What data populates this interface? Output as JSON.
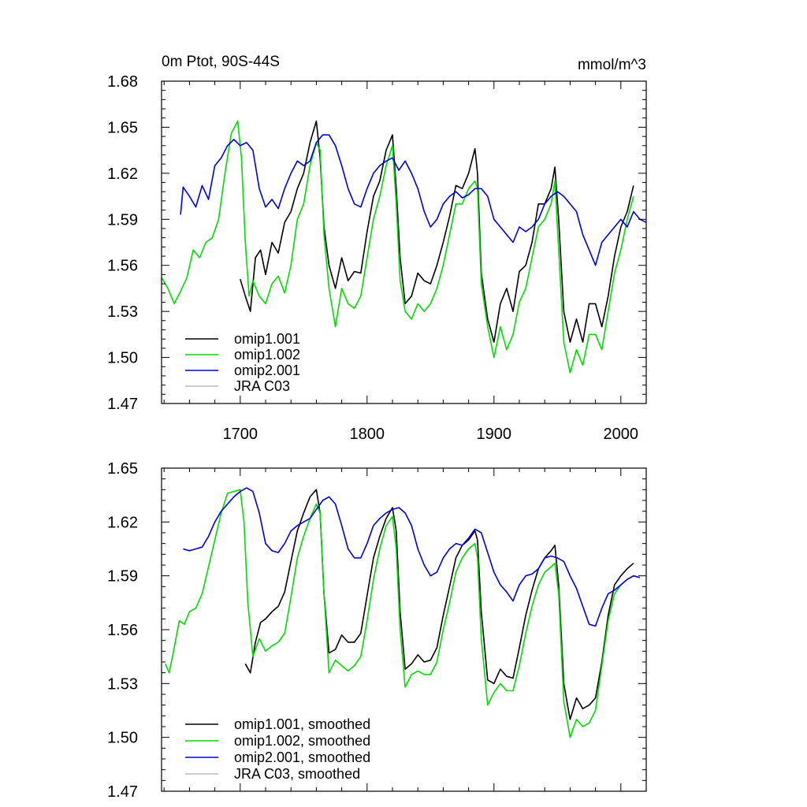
{
  "chart_data": [
    {
      "type": "line",
      "title": "0m Ptot, 90S-44S",
      "units": "mmol/m^3",
      "xlim": [
        1638,
        2020
      ],
      "ylim": [
        1.47,
        1.68
      ],
      "xticks": [
        1700,
        1800,
        1900,
        2000
      ],
      "xtick_labels": [
        "1700",
        "1800",
        "1900",
        "2000"
      ],
      "yticks": [
        1.47,
        1.5,
        1.53,
        1.56,
        1.59,
        1.62,
        1.65,
        1.68
      ],
      "ytick_labels": [
        "1.47",
        "1.50",
        "1.53",
        "1.56",
        "1.59",
        "1.62",
        "1.65",
        "1.68"
      ],
      "grid": false,
      "legend_position": "bottom-left",
      "series": [
        {
          "name": "omip1.001",
          "color": "#000000",
          "x": [
            1700,
            1704,
            1708,
            1712,
            1716,
            1720,
            1725,
            1730,
            1735,
            1740,
            1745,
            1750,
            1755,
            1760,
            1763,
            1766,
            1770,
            1775,
            1780,
            1785,
            1790,
            1795,
            1800,
            1805,
            1810,
            1815,
            1820,
            1823,
            1826,
            1830,
            1835,
            1840,
            1845,
            1850,
            1855,
            1860,
            1865,
            1870,
            1875,
            1880,
            1885,
            1887,
            1890,
            1895,
            1900,
            1905,
            1910,
            1915,
            1920,
            1925,
            1930,
            1935,
            1940,
            1945,
            1948,
            1951,
            1955,
            1960,
            1965,
            1970,
            1975,
            1980,
            1985,
            1990,
            1995,
            2000,
            2005,
            2010
          ],
          "y": [
            1.551,
            1.54,
            1.53,
            1.565,
            1.57,
            1.554,
            1.575,
            1.568,
            1.588,
            1.595,
            1.61,
            1.62,
            1.64,
            1.654,
            1.63,
            1.585,
            1.56,
            1.545,
            1.565,
            1.55,
            1.556,
            1.555,
            1.582,
            1.605,
            1.615,
            1.635,
            1.645,
            1.61,
            1.565,
            1.535,
            1.54,
            1.555,
            1.55,
            1.548,
            1.56,
            1.575,
            1.592,
            1.612,
            1.61,
            1.62,
            1.636,
            1.62,
            1.555,
            1.525,
            1.51,
            1.535,
            1.545,
            1.53,
            1.556,
            1.56,
            1.575,
            1.6,
            1.6,
            1.61,
            1.624,
            1.59,
            1.53,
            1.51,
            1.525,
            1.51,
            1.535,
            1.535,
            1.52,
            1.54,
            1.566,
            1.585,
            1.595,
            1.612
          ]
        },
        {
          "name": "omip1.002",
          "color": "#00dd00",
          "x": [
            1638,
            1643,
            1648,
            1653,
            1658,
            1663,
            1668,
            1673,
            1678,
            1683,
            1688,
            1693,
            1698,
            1701,
            1704,
            1707,
            1710,
            1715,
            1720,
            1725,
            1730,
            1735,
            1740,
            1745,
            1750,
            1755,
            1760,
            1763,
            1766,
            1770,
            1775,
            1780,
            1785,
            1790,
            1795,
            1800,
            1805,
            1810,
            1815,
            1820,
            1823,
            1826,
            1830,
            1835,
            1840,
            1845,
            1850,
            1855,
            1860,
            1865,
            1870,
            1875,
            1880,
            1885,
            1887,
            1890,
            1895,
            1900,
            1905,
            1910,
            1915,
            1920,
            1925,
            1930,
            1935,
            1940,
            1945,
            1948,
            1951,
            1955,
            1960,
            1965,
            1970,
            1975,
            1980,
            1985,
            1990,
            1995,
            2000,
            2005,
            2010
          ],
          "y": [
            1.552,
            1.545,
            1.535,
            1.543,
            1.552,
            1.57,
            1.565,
            1.575,
            1.578,
            1.59,
            1.62,
            1.646,
            1.654,
            1.63,
            1.575,
            1.54,
            1.55,
            1.54,
            1.535,
            1.548,
            1.553,
            1.542,
            1.56,
            1.59,
            1.6,
            1.625,
            1.64,
            1.635,
            1.58,
            1.545,
            1.52,
            1.545,
            1.535,
            1.532,
            1.54,
            1.565,
            1.59,
            1.605,
            1.625,
            1.638,
            1.6,
            1.55,
            1.53,
            1.525,
            1.535,
            1.53,
            1.535,
            1.545,
            1.56,
            1.58,
            1.6,
            1.6,
            1.61,
            1.615,
            1.61,
            1.548,
            1.52,
            1.5,
            1.52,
            1.505,
            1.515,
            1.536,
            1.545,
            1.565,
            1.585,
            1.59,
            1.6,
            1.615,
            1.57,
            1.51,
            1.49,
            1.505,
            1.495,
            1.515,
            1.515,
            1.505,
            1.53,
            1.555,
            1.57,
            1.59,
            1.605
          ]
        },
        {
          "name": "omip2.001",
          "color": "#0000dd",
          "x": [
            1653,
            1655,
            1660,
            1665,
            1670,
            1675,
            1680,
            1685,
            1690,
            1695,
            1700,
            1705,
            1710,
            1715,
            1720,
            1725,
            1730,
            1735,
            1740,
            1745,
            1750,
            1755,
            1760,
            1765,
            1770,
            1775,
            1780,
            1785,
            1790,
            1795,
            1800,
            1805,
            1810,
            1815,
            1820,
            1825,
            1830,
            1835,
            1840,
            1845,
            1850,
            1855,
            1860,
            1865,
            1870,
            1875,
            1880,
            1885,
            1890,
            1895,
            1900,
            1905,
            1910,
            1915,
            1920,
            1925,
            1930,
            1935,
            1940,
            1945,
            1950,
            1955,
            1960,
            1965,
            1970,
            1975,
            1980,
            1985,
            1990,
            1995,
            2000,
            2005,
            2010,
            2015,
            2020
          ],
          "y": [
            1.593,
            1.611,
            1.605,
            1.598,
            1.612,
            1.603,
            1.625,
            1.63,
            1.638,
            1.642,
            1.638,
            1.64,
            1.635,
            1.61,
            1.598,
            1.603,
            1.597,
            1.61,
            1.62,
            1.628,
            1.625,
            1.628,
            1.64,
            1.645,
            1.645,
            1.638,
            1.625,
            1.61,
            1.6,
            1.598,
            1.61,
            1.62,
            1.625,
            1.628,
            1.63,
            1.622,
            1.628,
            1.62,
            1.61,
            1.595,
            1.585,
            1.59,
            1.6,
            1.605,
            1.608,
            1.604,
            1.606,
            1.61,
            1.61,
            1.605,
            1.59,
            1.585,
            1.58,
            1.575,
            1.585,
            1.582,
            1.585,
            1.59,
            1.6,
            1.605,
            1.608,
            1.605,
            1.6,
            1.595,
            1.58,
            1.57,
            1.56,
            1.575,
            1.58,
            1.585,
            1.59,
            1.585,
            1.595,
            1.59,
            1.588
          ]
        },
        {
          "name": "JRA C03",
          "color": "#bbbbbb",
          "x": [],
          "y": []
        }
      ]
    },
    {
      "type": "line",
      "title": "",
      "xlim": [
        1638,
        2020
      ],
      "ylim": [
        1.47,
        1.65
      ],
      "xticks": [
        1700,
        1800,
        1900,
        2000
      ],
      "yticks": [
        1.47,
        1.5,
        1.53,
        1.56,
        1.59,
        1.62,
        1.65
      ],
      "ytick_labels": [
        "1.47",
        "1.50",
        "1.53",
        "1.56",
        "1.59",
        "1.62",
        "1.65"
      ],
      "grid": false,
      "legend_position": "bottom-left",
      "series": [
        {
          "name": "omip1.001, smoothed",
          "color": "#000000",
          "x": [
            1704,
            1708,
            1712,
            1716,
            1720,
            1725,
            1730,
            1735,
            1740,
            1745,
            1750,
            1755,
            1760,
            1763,
            1766,
            1770,
            1775,
            1780,
            1785,
            1790,
            1795,
            1800,
            1805,
            1810,
            1815,
            1820,
            1823,
            1826,
            1830,
            1835,
            1840,
            1845,
            1850,
            1855,
            1860,
            1865,
            1870,
            1875,
            1880,
            1885,
            1887,
            1890,
            1895,
            1900,
            1905,
            1910,
            1915,
            1920,
            1925,
            1930,
            1935,
            1940,
            1945,
            1948,
            1951,
            1955,
            1960,
            1965,
            1970,
            1975,
            1980,
            1985,
            1990,
            1995,
            2000,
            2005,
            2010
          ],
          "y": [
            1.541,
            1.536,
            1.553,
            1.564,
            1.566,
            1.57,
            1.573,
            1.581,
            1.598,
            1.615,
            1.625,
            1.634,
            1.638,
            1.625,
            1.58,
            1.547,
            1.549,
            1.557,
            1.553,
            1.553,
            1.558,
            1.579,
            1.6,
            1.612,
            1.622,
            1.628,
            1.615,
            1.57,
            1.538,
            1.541,
            1.546,
            1.542,
            1.543,
            1.55,
            1.568,
            1.584,
            1.6,
            1.607,
            1.61,
            1.615,
            1.61,
            1.57,
            1.532,
            1.53,
            1.538,
            1.534,
            1.533,
            1.55,
            1.568,
            1.582,
            1.594,
            1.6,
            1.604,
            1.607,
            1.585,
            1.53,
            1.51,
            1.522,
            1.516,
            1.518,
            1.522,
            1.542,
            1.568,
            1.585,
            1.59,
            1.594,
            1.597
          ]
        },
        {
          "name": "omip1.002, smoothed",
          "color": "#00dd00",
          "x": [
            1641,
            1644,
            1648,
            1652,
            1656,
            1660,
            1665,
            1670,
            1675,
            1680,
            1685,
            1690,
            1695,
            1700,
            1703,
            1706,
            1710,
            1715,
            1720,
            1725,
            1730,
            1735,
            1740,
            1745,
            1750,
            1755,
            1760,
            1763,
            1766,
            1770,
            1775,
            1780,
            1785,
            1790,
            1795,
            1800,
            1805,
            1810,
            1815,
            1820,
            1823,
            1826,
            1830,
            1835,
            1840,
            1845,
            1850,
            1855,
            1860,
            1865,
            1870,
            1875,
            1880,
            1885,
            1887,
            1890,
            1895,
            1900,
            1905,
            1910,
            1915,
            1920,
            1925,
            1930,
            1935,
            1940,
            1945,
            1948,
            1951,
            1955,
            1960,
            1965,
            1970,
            1975,
            1980,
            1985,
            1990,
            1995,
            2000,
            2005,
            2010
          ],
          "y": [
            1.541,
            1.536,
            1.55,
            1.565,
            1.563,
            1.57,
            1.572,
            1.58,
            1.595,
            1.61,
            1.625,
            1.636,
            1.637,
            1.638,
            1.62,
            1.575,
            1.545,
            1.555,
            1.548,
            1.551,
            1.553,
            1.558,
            1.578,
            1.6,
            1.612,
            1.622,
            1.63,
            1.625,
            1.58,
            1.536,
            1.543,
            1.54,
            1.537,
            1.54,
            1.545,
            1.565,
            1.588,
            1.605,
            1.618,
            1.623,
            1.605,
            1.56,
            1.528,
            1.535,
            1.537,
            1.535,
            1.535,
            1.542,
            1.56,
            1.575,
            1.592,
            1.6,
            1.605,
            1.608,
            1.6,
            1.555,
            1.518,
            1.525,
            1.53,
            1.526,
            1.526,
            1.54,
            1.558,
            1.573,
            1.585,
            1.592,
            1.595,
            1.597,
            1.58,
            1.52,
            1.5,
            1.51,
            1.506,
            1.508,
            1.515,
            1.54,
            1.565,
            1.58,
            1.585,
            1.588,
            1.59
          ]
        },
        {
          "name": "omip2.001, smoothed",
          "color": "#0000dd",
          "x": [
            1655,
            1660,
            1665,
            1670,
            1675,
            1680,
            1685,
            1690,
            1695,
            1700,
            1705,
            1710,
            1715,
            1720,
            1725,
            1730,
            1735,
            1740,
            1745,
            1750,
            1755,
            1760,
            1765,
            1770,
            1775,
            1780,
            1785,
            1790,
            1795,
            1800,
            1805,
            1810,
            1815,
            1820,
            1825,
            1830,
            1835,
            1840,
            1845,
            1850,
            1855,
            1860,
            1865,
            1870,
            1875,
            1880,
            1885,
            1890,
            1895,
            1900,
            1905,
            1910,
            1915,
            1920,
            1925,
            1930,
            1935,
            1940,
            1945,
            1950,
            1955,
            1960,
            1965,
            1970,
            1975,
            1980,
            1985,
            1990,
            1995,
            2000,
            2005,
            2010,
            2015
          ],
          "y": [
            1.605,
            1.604,
            1.605,
            1.606,
            1.612,
            1.62,
            1.626,
            1.63,
            1.634,
            1.637,
            1.639,
            1.637,
            1.625,
            1.608,
            1.604,
            1.603,
            1.608,
            1.615,
            1.618,
            1.62,
            1.622,
            1.627,
            1.632,
            1.634,
            1.63,
            1.618,
            1.605,
            1.6,
            1.6,
            1.608,
            1.618,
            1.622,
            1.625,
            1.627,
            1.628,
            1.625,
            1.618,
            1.605,
            1.596,
            1.59,
            1.592,
            1.6,
            1.605,
            1.608,
            1.607,
            1.611,
            1.616,
            1.614,
            1.603,
            1.592,
            1.585,
            1.581,
            1.576,
            1.585,
            1.59,
            1.591,
            1.594,
            1.6,
            1.601,
            1.6,
            1.598,
            1.59,
            1.583,
            1.573,
            1.563,
            1.562,
            1.572,
            1.58,
            1.582,
            1.585,
            1.588,
            1.59,
            1.589
          ]
        },
        {
          "name": "JRA C03, smoothed",
          "color": "#bbbbbb",
          "x": [],
          "y": []
        }
      ]
    }
  ]
}
